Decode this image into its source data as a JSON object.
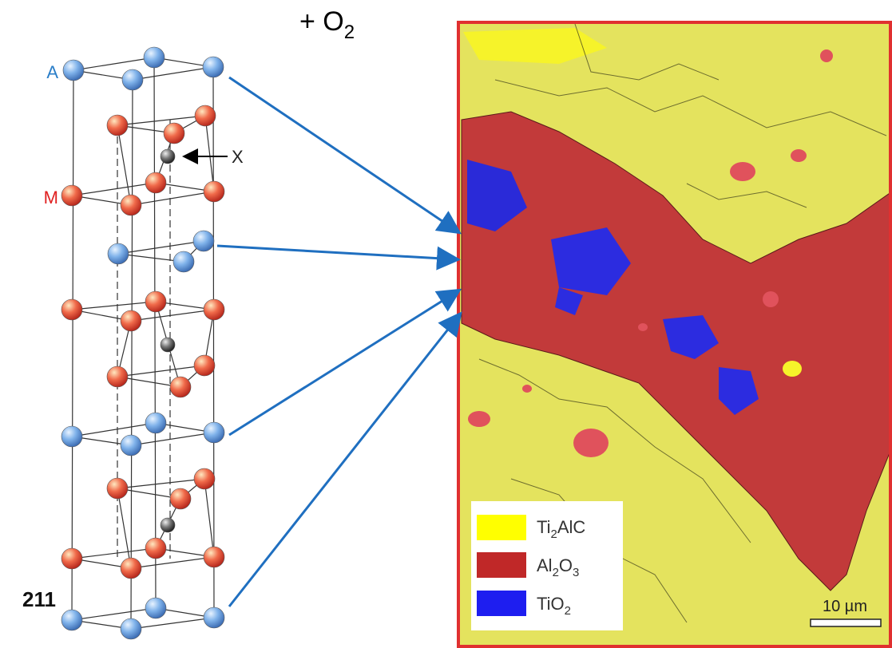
{
  "title": {
    "prefix": "+ O",
    "sub": "2"
  },
  "structure": {
    "label": "211",
    "atoms": {
      "a": "A",
      "m": "M",
      "x": "X"
    }
  },
  "map": {
    "legend": [
      {
        "base": "Ti",
        "sub": "2",
        "rest": "AlC"
      },
      {
        "base": "Al",
        "sub": "2",
        "rest": "O",
        "sub2": "3"
      },
      {
        "base": "TiO",
        "sub": "2"
      }
    ],
    "scale_bar": "10 µm"
  }
}
